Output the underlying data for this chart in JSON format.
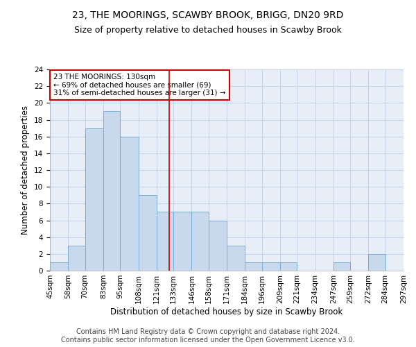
{
  "title": "23, THE MOORINGS, SCAWBY BROOK, BRIGG, DN20 9RD",
  "subtitle": "Size of property relative to detached houses in Scawby Brook",
  "xlabel": "Distribution of detached houses by size in Scawby Brook",
  "ylabel": "Number of detached properties",
  "footer_line1": "Contains HM Land Registry data © Crown copyright and database right 2024.",
  "footer_line2": "Contains public sector information licensed under the Open Government Licence v3.0.",
  "bar_edges": [
    45,
    58,
    70,
    83,
    95,
    108,
    121,
    133,
    146,
    158,
    171,
    184,
    196,
    209,
    221,
    234,
    247,
    259,
    272,
    284,
    297
  ],
  "bar_heights": [
    1,
    3,
    17,
    19,
    16,
    9,
    7,
    7,
    7,
    6,
    3,
    1,
    1,
    1,
    0,
    0,
    1,
    0,
    2,
    0
  ],
  "bar_color": "#c8d9ee",
  "bar_edge_color": "#7aadd4",
  "subject_value": 130,
  "vline_color": "#cc0000",
  "annotation_line1": "23 THE MOORINGS: 130sqm",
  "annotation_line2": "← 69% of detached houses are smaller (69)",
  "annotation_line3": "31% of semi-detached houses are larger (31) →",
  "annotation_box_color": "#cc0000",
  "annotation_text_color": "#000000",
  "ylim": [
    0,
    24
  ],
  "yticks": [
    0,
    2,
    4,
    6,
    8,
    10,
    12,
    14,
    16,
    18,
    20,
    22,
    24
  ],
  "grid_color": "#c8d4e8",
  "background_color": "#e8eef8",
  "title_fontsize": 10,
  "subtitle_fontsize": 9,
  "axis_label_fontsize": 8.5,
  "tick_fontsize": 7.5,
  "annotation_fontsize": 7.5,
  "footer_fontsize": 7
}
